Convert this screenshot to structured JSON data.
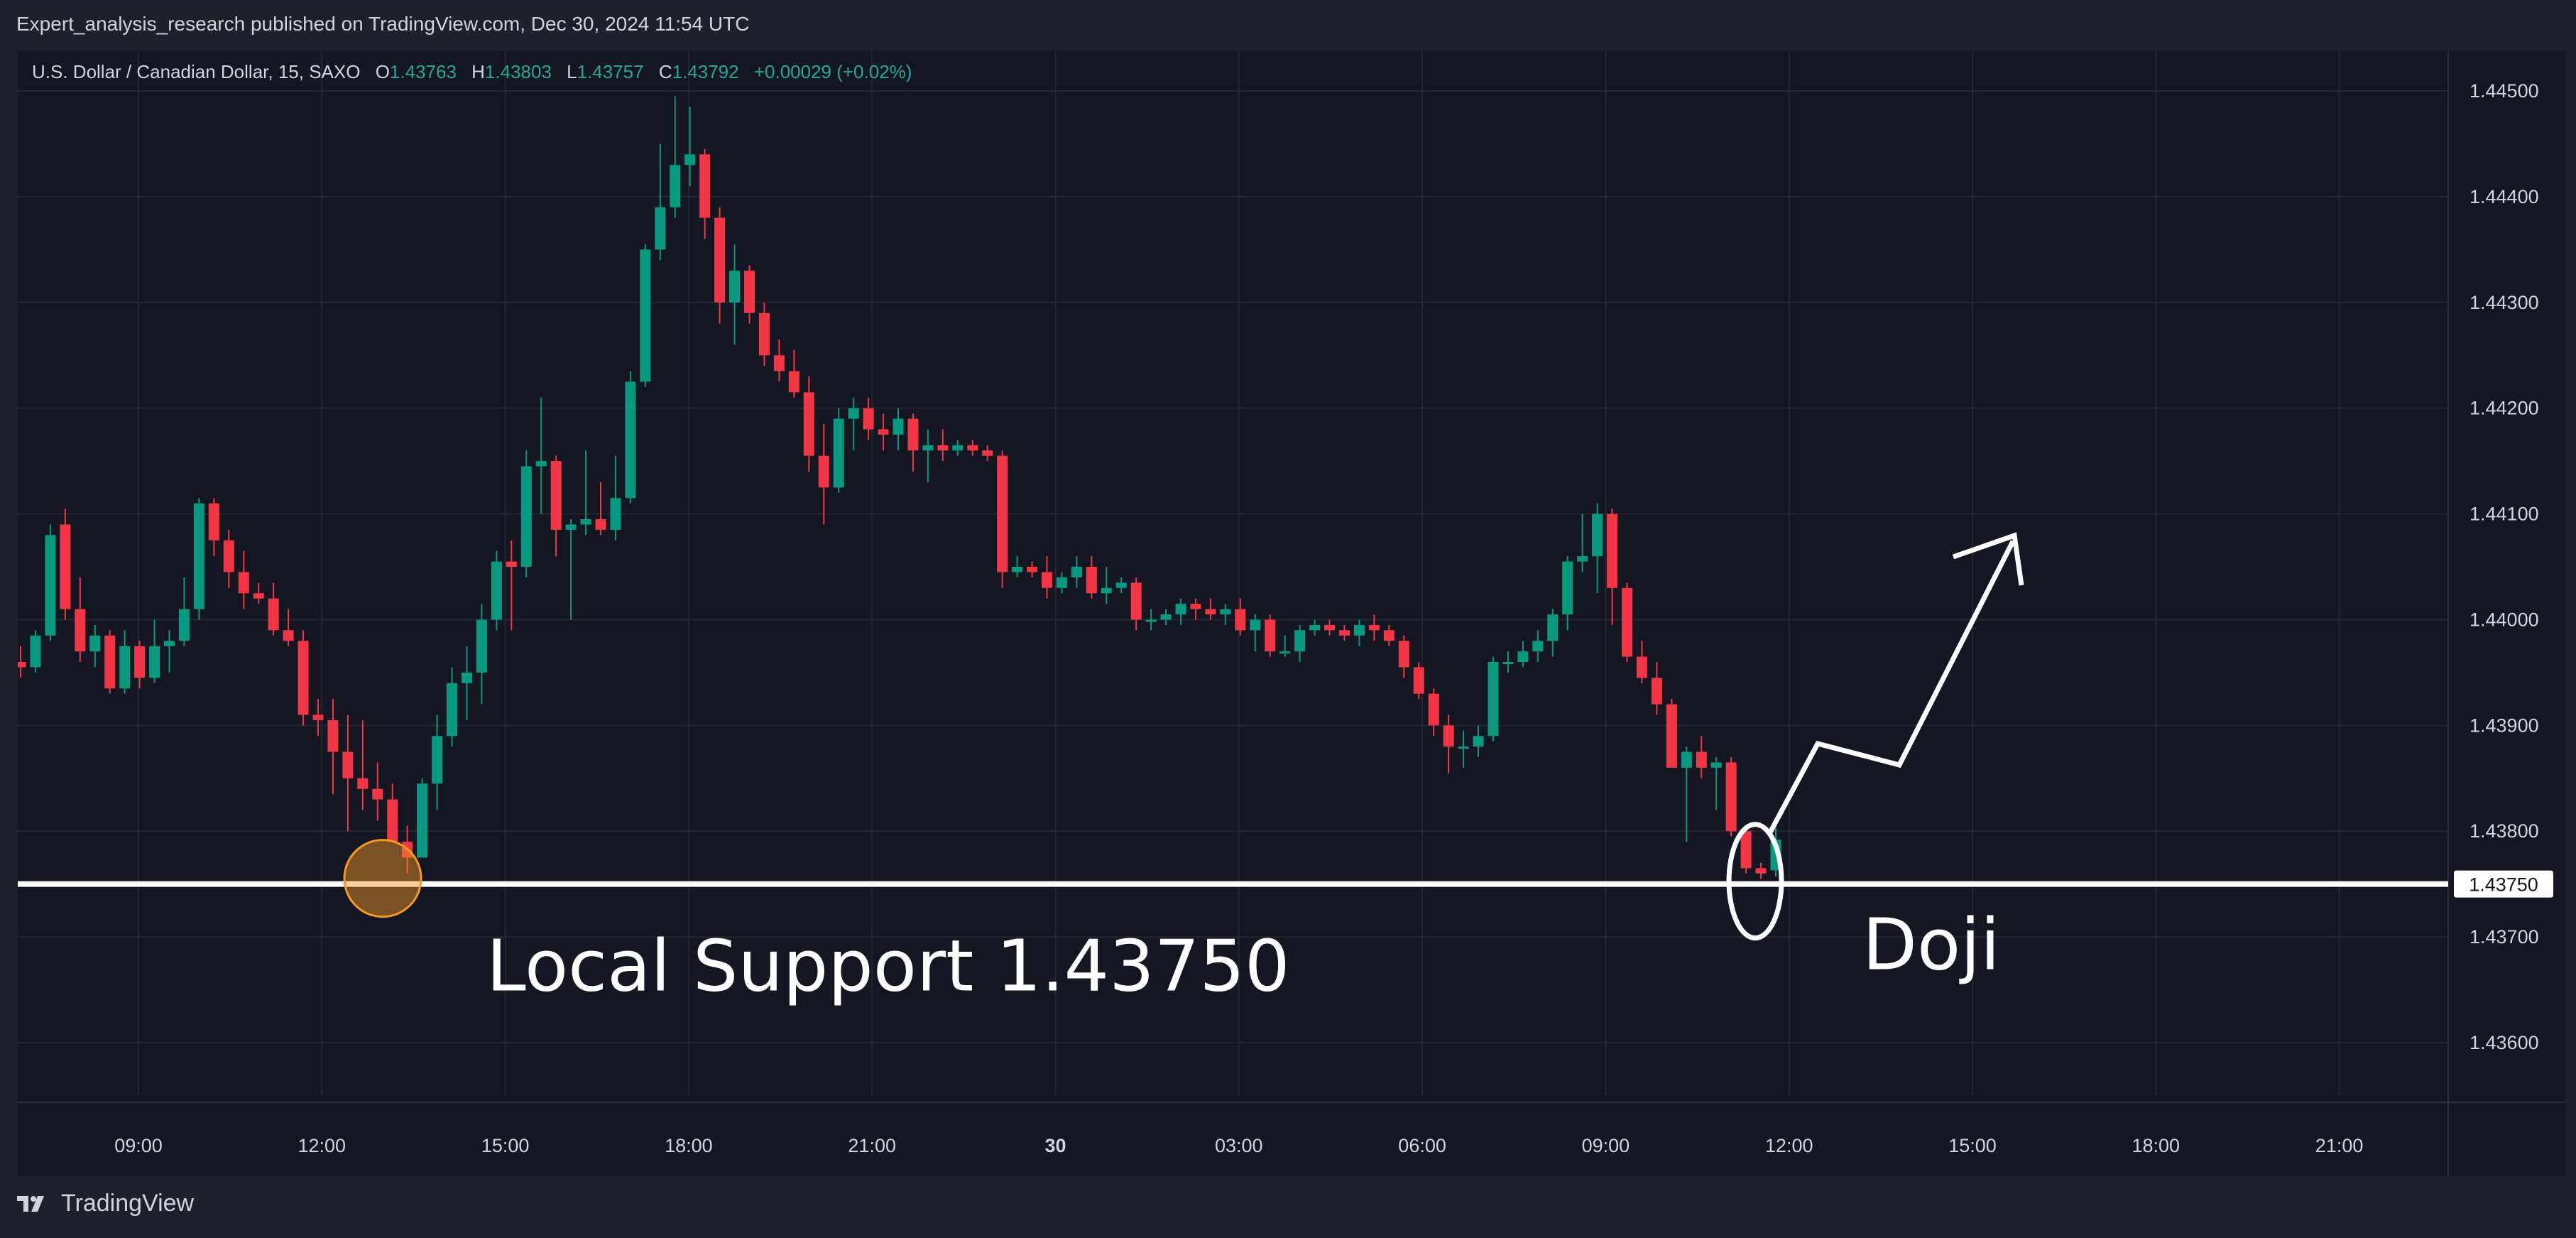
{
  "publication": {
    "text": "Expert_analysis_research published on TradingView.com, Dec 30, 2024 11:54 UTC"
  },
  "legend": {
    "symbol": "U.S. Dollar / Canadian Dollar, 15, SAXO",
    "open_label": "O",
    "open": "1.43763",
    "high_label": "H",
    "high": "1.43803",
    "low_label": "L",
    "low": "1.43757",
    "close_label": "C",
    "close": "1.43792",
    "change": "+0.00029 (+0.02%)"
  },
  "footer": {
    "brand": "TradingView",
    "logo_icon": "tradingview-logo-icon"
  },
  "colors": {
    "up": "#089981",
    "down": "#f23645",
    "background": "#141722",
    "panel": "#1f212a",
    "text": "#d1d4dc",
    "annotation": "#ffffff",
    "highlight": "#f59a23"
  },
  "chart_data": {
    "type": "candlestick",
    "price_axis": {
      "ticks": [
        "1.44500",
        "1.44400",
        "1.44300",
        "1.44200",
        "1.44100",
        "1.44000",
        "1.43900",
        "1.43800",
        "1.43700",
        "1.43600"
      ],
      "current_label": "1.43750"
    },
    "time_axis": {
      "labels": [
        "09:00",
        "12:00",
        "15:00",
        "18:00",
        "21:00",
        "30",
        "03:00",
        "06:00",
        "09:00",
        "12:00",
        "15:00",
        "18:00",
        "21:00"
      ]
    },
    "ohlc_sequence_note": "15-minute bars, Dec 29 07:00 to Dec 30 11:45",
    "candles": [
      [
        1.4396,
        1.43945,
        1.43975,
        1.43955
      ],
      [
        1.43955,
        1.4395,
        1.4399,
        1.43985
      ],
      [
        1.43985,
        1.4398,
        1.4409,
        1.4408
      ],
      [
        1.4409,
        1.44,
        1.44105,
        1.4401
      ],
      [
        1.4401,
        1.4396,
        1.4404,
        1.4397
      ],
      [
        1.4397,
        1.43955,
        1.43995,
        1.43985
      ],
      [
        1.43985,
        1.4393,
        1.4399,
        1.43935
      ],
      [
        1.43935,
        1.4393,
        1.4399,
        1.43975
      ],
      [
        1.43975,
        1.43935,
        1.4398,
        1.43945
      ],
      [
        1.43945,
        1.4394,
        1.44,
        1.43975
      ],
      [
        1.43975,
        1.4395,
        1.4399,
        1.4398
      ],
      [
        1.4398,
        1.43975,
        1.4404,
        1.4401
      ],
      [
        1.4401,
        1.44,
        1.44115,
        1.4411
      ],
      [
        1.4411,
        1.4406,
        1.44115,
        1.44075
      ],
      [
        1.44075,
        1.4403,
        1.44085,
        1.44045
      ],
      [
        1.44045,
        1.4401,
        1.44065,
        1.44025
      ],
      [
        1.44025,
        1.44015,
        1.44035,
        1.4402
      ],
      [
        1.4402,
        1.43985,
        1.44035,
        1.4399
      ],
      [
        1.4399,
        1.43975,
        1.4401,
        1.4398
      ],
      [
        1.4398,
        1.439,
        1.4399,
        1.4391
      ],
      [
        1.4391,
        1.4389,
        1.43925,
        1.43905
      ],
      [
        1.43905,
        1.43835,
        1.43925,
        1.43875
      ],
      [
        1.43875,
        1.438,
        1.4391,
        1.4385
      ],
      [
        1.4385,
        1.4382,
        1.43905,
        1.4384
      ],
      [
        1.4384,
        1.4381,
        1.43865,
        1.4383
      ],
      [
        1.4383,
        1.4379,
        1.43845,
        1.4379
      ],
      [
        1.4379,
        1.4376,
        1.43805,
        1.43775
      ],
      [
        1.43775,
        1.43775,
        1.4385,
        1.43845
      ],
      [
        1.43845,
        1.4382,
        1.4391,
        1.4389
      ],
      [
        1.4389,
        1.4388,
        1.43955,
        1.4394
      ],
      [
        1.4394,
        1.43905,
        1.43975,
        1.4395
      ],
      [
        1.4395,
        1.4392,
        1.44015,
        1.44
      ],
      [
        1.44,
        1.4399,
        1.44065,
        1.44055
      ],
      [
        1.44055,
        1.4399,
        1.44075,
        1.4405
      ],
      [
        1.4405,
        1.4404,
        1.4416,
        1.44145
      ],
      [
        1.44145,
        1.441,
        1.4421,
        1.4415
      ],
      [
        1.4415,
        1.4406,
        1.44155,
        1.44085
      ],
      [
        1.44085,
        1.44,
        1.44095,
        1.4409
      ],
      [
        1.4409,
        1.4408,
        1.4416,
        1.44095
      ],
      [
        1.44095,
        1.4408,
        1.4413,
        1.44085
      ],
      [
        1.44085,
        1.44075,
        1.44155,
        1.44115
      ],
      [
        1.44115,
        1.4411,
        1.44235,
        1.44225
      ],
      [
        1.44225,
        1.4422,
        1.44355,
        1.4435
      ],
      [
        1.4435,
        1.4434,
        1.4445,
        1.4439
      ],
      [
        1.4439,
        1.4438,
        1.44495,
        1.4443
      ],
      [
        1.4443,
        1.4441,
        1.44485,
        1.4444
      ],
      [
        1.4444,
        1.4436,
        1.44445,
        1.4438
      ],
      [
        1.4438,
        1.4428,
        1.4439,
        1.443
      ],
      [
        1.443,
        1.4426,
        1.44355,
        1.4433
      ],
      [
        1.4433,
        1.4428,
        1.44335,
        1.4429
      ],
      [
        1.4429,
        1.4424,
        1.443,
        1.4425
      ],
      [
        1.4425,
        1.44225,
        1.44265,
        1.44235
      ],
      [
        1.44235,
        1.4421,
        1.44255,
        1.44215
      ],
      [
        1.44215,
        1.4414,
        1.4423,
        1.44155
      ],
      [
        1.44155,
        1.4409,
        1.44185,
        1.44125
      ],
      [
        1.44125,
        1.4412,
        1.442,
        1.4419
      ],
      [
        1.4419,
        1.4416,
        1.4421,
        1.442
      ],
      [
        1.442,
        1.4417,
        1.4421,
        1.4418
      ],
      [
        1.4418,
        1.4416,
        1.44195,
        1.44175
      ],
      [
        1.44175,
        1.4416,
        1.442,
        1.4419
      ],
      [
        1.4419,
        1.4414,
        1.44195,
        1.4416
      ],
      [
        1.4416,
        1.4413,
        1.4418,
        1.44165
      ],
      [
        1.44165,
        1.4415,
        1.4418,
        1.4416
      ],
      [
        1.4416,
        1.44155,
        1.4417,
        1.44165
      ],
      [
        1.44165,
        1.44155,
        1.4417,
        1.4416
      ],
      [
        1.4416,
        1.4415,
        1.44165,
        1.44155
      ],
      [
        1.44155,
        1.4403,
        1.4416,
        1.44045
      ],
      [
        1.44045,
        1.4404,
        1.4406,
        1.4405
      ],
      [
        1.4405,
        1.4404,
        1.44055,
        1.44045
      ],
      [
        1.44045,
        1.4402,
        1.4406,
        1.4403
      ],
      [
        1.4403,
        1.44025,
        1.44045,
        1.4404
      ],
      [
        1.4404,
        1.4403,
        1.4406,
        1.4405
      ],
      [
        1.4405,
        1.4402,
        1.4406,
        1.44025
      ],
      [
        1.44025,
        1.44015,
        1.4405,
        1.4403
      ],
      [
        1.4403,
        1.44025,
        1.4404,
        1.44035
      ],
      [
        1.44035,
        1.4399,
        1.4404,
        1.44
      ],
      [
        1.44,
        1.4399,
        1.4401,
        1.44
      ],
      [
        1.44,
        1.43995,
        1.4401,
        1.44005
      ],
      [
        1.44005,
        1.43995,
        1.4402,
        1.44015
      ],
      [
        1.44015,
        1.44,
        1.4402,
        1.4401
      ],
      [
        1.4401,
        1.44,
        1.4402,
        1.44005
      ],
      [
        1.44005,
        1.43995,
        1.44015,
        1.4401
      ],
      [
        1.4401,
        1.43985,
        1.4402,
        1.4399
      ],
      [
        1.4399,
        1.4397,
        1.44005,
        1.44
      ],
      [
        1.44,
        1.43965,
        1.44005,
        1.4397
      ],
      [
        1.4397,
        1.43965,
        1.43985,
        1.4397
      ],
      [
        1.4397,
        1.4396,
        1.43995,
        1.4399
      ],
      [
        1.4399,
        1.43985,
        1.44,
        1.43995
      ],
      [
        1.43995,
        1.43985,
        1.44,
        1.4399
      ],
      [
        1.4399,
        1.4398,
        1.43995,
        1.43985
      ],
      [
        1.43985,
        1.43975,
        1.44,
        1.43995
      ],
      [
        1.43995,
        1.4398,
        1.44005,
        1.4399
      ],
      [
        1.4399,
        1.43975,
        1.43995,
        1.4398
      ],
      [
        1.4398,
        1.43945,
        1.43985,
        1.43955
      ],
      [
        1.43955,
        1.43925,
        1.4396,
        1.4393
      ],
      [
        1.4393,
        1.4389,
        1.43935,
        1.439
      ],
      [
        1.439,
        1.43855,
        1.4391,
        1.4388
      ],
      [
        1.4388,
        1.4386,
        1.43895,
        1.4388
      ],
      [
        1.4388,
        1.4387,
        1.439,
        1.4389
      ],
      [
        1.4389,
        1.43885,
        1.43965,
        1.4396
      ],
      [
        1.4396,
        1.4395,
        1.4397,
        1.4396
      ],
      [
        1.4396,
        1.43955,
        1.4398,
        1.4397
      ],
      [
        1.4397,
        1.4396,
        1.4399,
        1.4398
      ],
      [
        1.4398,
        1.43965,
        1.4401,
        1.44005
      ],
      [
        1.44005,
        1.4399,
        1.4406,
        1.44055
      ],
      [
        1.44055,
        1.44045,
        1.441,
        1.4406
      ],
      [
        1.4406,
        1.44025,
        1.4411,
        1.441
      ],
      [
        1.441,
        1.43995,
        1.44105,
        1.4403
      ],
      [
        1.4403,
        1.4396,
        1.44035,
        1.43965
      ],
      [
        1.43965,
        1.4394,
        1.4398,
        1.43945
      ],
      [
        1.43945,
        1.4391,
        1.4396,
        1.4392
      ],
      [
        1.4392,
        1.4386,
        1.43925,
        1.4386
      ],
      [
        1.4386,
        1.4379,
        1.4388,
        1.43875
      ],
      [
        1.43875,
        1.4385,
        1.4389,
        1.4386
      ],
      [
        1.4386,
        1.4382,
        1.4387,
        1.43865
      ],
      [
        1.43865,
        1.43795,
        1.4387,
        1.438
      ],
      [
        1.438,
        1.4376,
        1.43805,
        1.43765
      ],
      [
        1.43765,
        1.43755,
        1.4377,
        1.4376
      ],
      [
        1.43763,
        1.43757,
        1.43803,
        1.43792
      ]
    ],
    "annotations": {
      "support_label": "Local Support 1.43750",
      "doji_label": "Doji",
      "support_level": 1.4375
    }
  }
}
